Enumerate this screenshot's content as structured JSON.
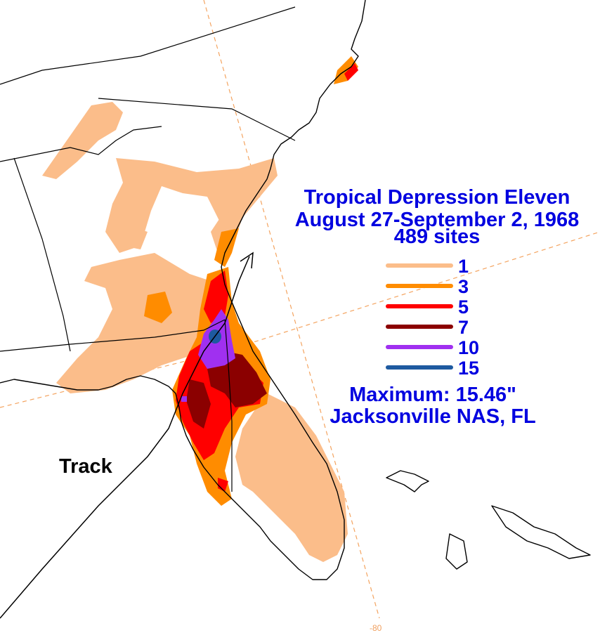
{
  "title": {
    "line1": "Tropical Depression Eleven",
    "line2": "August 27-September 2, 1968",
    "line3": "489 sites"
  },
  "legend": [
    {
      "label": "1",
      "color": "#fbbd8a"
    },
    {
      "label": "3",
      "color": "#ff8c00"
    },
    {
      "label": "5",
      "color": "#ff0000"
    },
    {
      "label": "7",
      "color": "#8b0000"
    },
    {
      "label": "10",
      "color": "#a030f0"
    },
    {
      "label": "15",
      "color": "#1e5aa0"
    }
  ],
  "maximum": {
    "line1": "Maximum:  15.46\"",
    "line2": "Jacksonville NAS, FL"
  },
  "track_label": "Track",
  "longitude_label": "-80"
}
